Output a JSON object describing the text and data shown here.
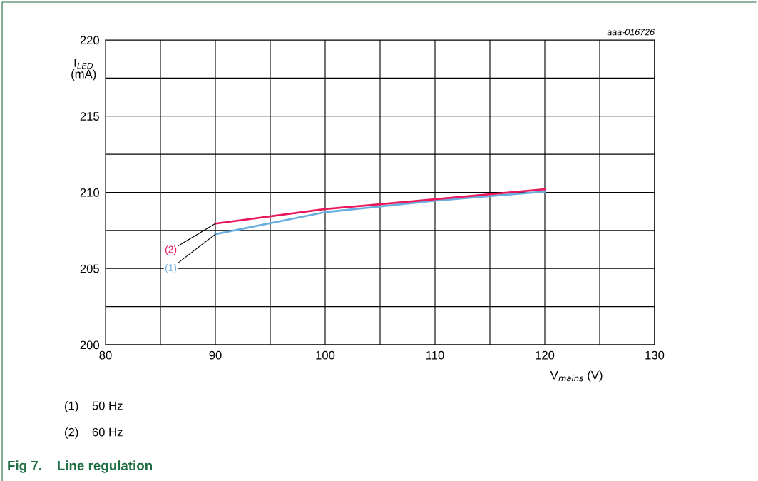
{
  "chart_data": {
    "type": "line",
    "title": "Fig 7.    Line regulation",
    "xlabel": "V$_{mains}$ (V)",
    "ylabel": "I$_{LED}$\n(mA)",
    "x": [
      90,
      100,
      110,
      120
    ],
    "series": [
      {
        "name": "(1)",
        "color": "#6aaee0",
        "values": [
          207.25,
          208.7,
          209.45,
          210.05
        ]
      },
      {
        "name": "(2)",
        "color": "#e8185a",
        "values": [
          207.95,
          208.9,
          209.55,
          210.2
        ]
      }
    ],
    "xlim": [
      80,
      130
    ],
    "xticks": [
      80,
      {
        "value": 85,
        "label": null
      },
      90,
      {
        "value": 95,
        "label": null
      },
      100,
      {
        "value": 105,
        "label": null
      },
      110,
      {
        "value": 115,
        "label": null
      },
      120,
      {
        "value": 125,
        "label": null
      },
      130
    ],
    "ylim": [
      200,
      220
    ],
    "yticks": [
      200,
      {
        "value": 202.5,
        "label": null
      },
      205,
      {
        "value": 207.5,
        "label": null
      },
      210,
      {
        "value": 212.5,
        "label": null
      },
      215,
      {
        "value": 217.5,
        "label": null
      },
      220
    ],
    "grid": true,
    "legend": false,
    "marker": "none",
    "line_style": "solid",
    "annotations": [
      "aaa-016726",
      "(1)    50 Hz",
      "(2)    60 Hz"
    ]
  }
}
